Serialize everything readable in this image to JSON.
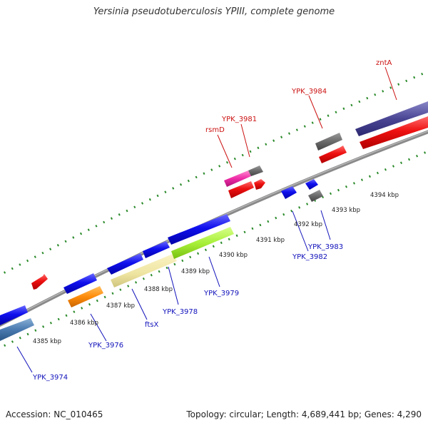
{
  "title": "Yersinia pseudotuberculosis YPIII, complete genome",
  "footer": {
    "accession": "Accession: NC_010465",
    "summary": "Topology: circular; Length: 4,689,441 bp; Genes: 4,290"
  },
  "colors": {
    "backbone": "#8a8a8a",
    "tick": "#2a8a2a",
    "forward_label": "#cc1111",
    "reverse_label": "#1111bb"
  },
  "kbp_ticks": [
    {
      "kbp": 4385,
      "label": "4385 kbp"
    },
    {
      "kbp": 4386,
      "label": "4386 kbp"
    },
    {
      "kbp": 4387,
      "label": "4387 kbp"
    },
    {
      "kbp": 4388,
      "label": "4388 kbp"
    },
    {
      "kbp": 4389,
      "label": "4389 kbp"
    },
    {
      "kbp": 4390,
      "label": "4390 kbp"
    },
    {
      "kbp": 4391,
      "label": "4391 kbp"
    },
    {
      "kbp": 4392,
      "label": "4392 kbp"
    },
    {
      "kbp": 4393,
      "label": "4393 kbp"
    },
    {
      "kbp": 4394,
      "label": "4394 kbp"
    }
  ],
  "forward_labels": [
    {
      "name": "rsmD",
      "label": "rsmD"
    },
    {
      "name": "ypk3981",
      "label": "YPK_3981"
    },
    {
      "name": "ypk3984",
      "label": "YPK_3984"
    },
    {
      "name": "znta",
      "label": "zntA"
    }
  ],
  "reverse_labels": [
    {
      "name": "ypk3974",
      "label": "YPK_3974"
    },
    {
      "name": "ypk3976",
      "label": "YPK_3976"
    },
    {
      "name": "ftsx",
      "label": "ftsX"
    },
    {
      "name": "ypk3978",
      "label": "YPK_3978"
    },
    {
      "name": "ypk3979",
      "label": "YPK_3979"
    },
    {
      "name": "ypk3982",
      "label": "YPK_3982"
    },
    {
      "name": "ypk3983",
      "label": "YPK_3983"
    }
  ]
}
